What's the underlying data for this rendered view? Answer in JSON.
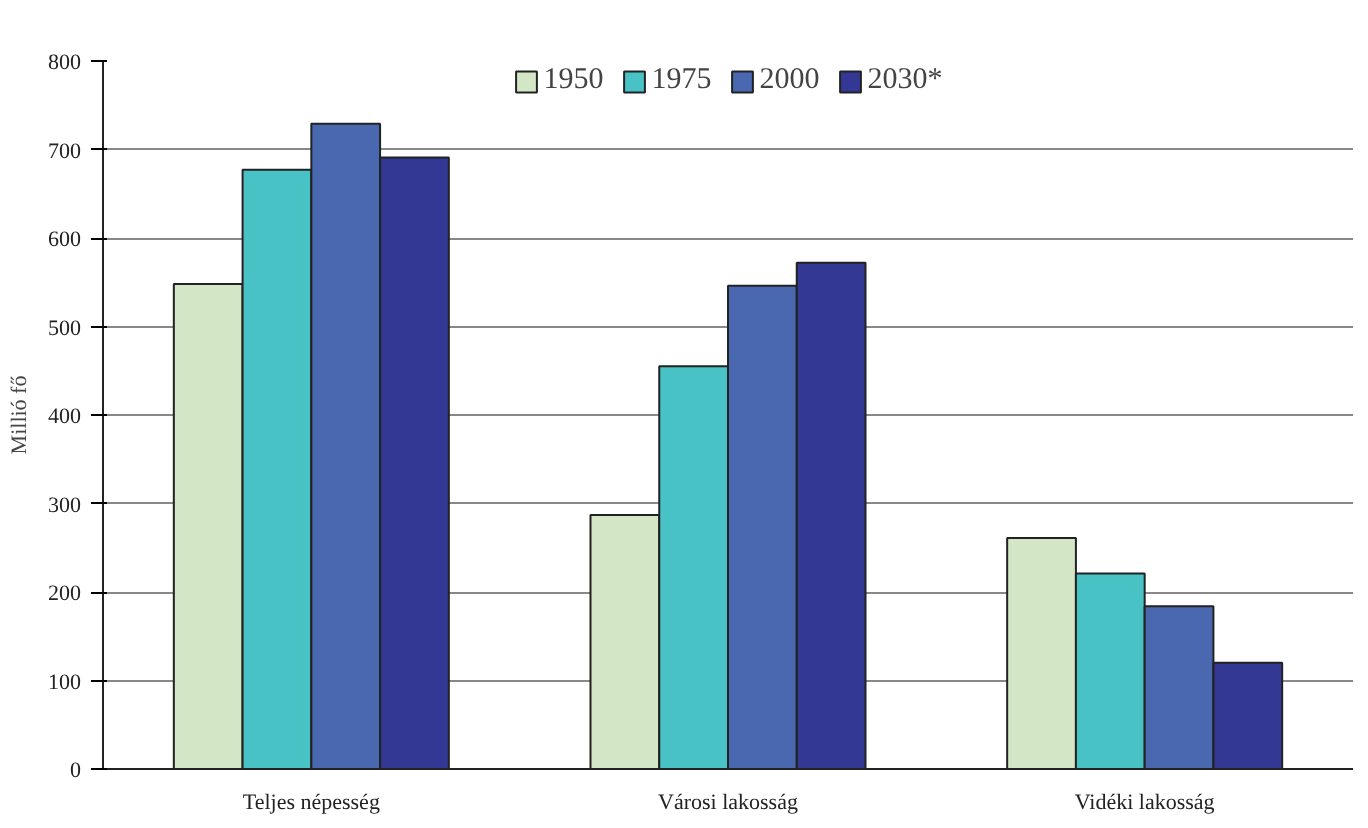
{
  "chart_data": {
    "type": "bar",
    "ylabel": "Millió fő",
    "categories": [
      "Teljes népesség",
      "Városi lakosság",
      "Vidéki lakosság"
    ],
    "series": [
      {
        "name": "1950",
        "color": "#d3e6c6",
        "values": [
          548,
          287,
          261
        ]
      },
      {
        "name": "1975",
        "color": "#48c2c5",
        "values": [
          677,
          455,
          221
        ]
      },
      {
        "name": "2000",
        "color": "#4a68b0",
        "values": [
          729,
          546,
          184
        ]
      },
      {
        "name": "2030*",
        "color": "#323893",
        "values": [
          691,
          572,
          120
        ]
      }
    ],
    "ylim": [
      0,
      800
    ],
    "yticks": [
      0,
      100,
      200,
      300,
      400,
      500,
      600,
      700,
      800
    ],
    "grid": "y",
    "legend": "top"
  }
}
